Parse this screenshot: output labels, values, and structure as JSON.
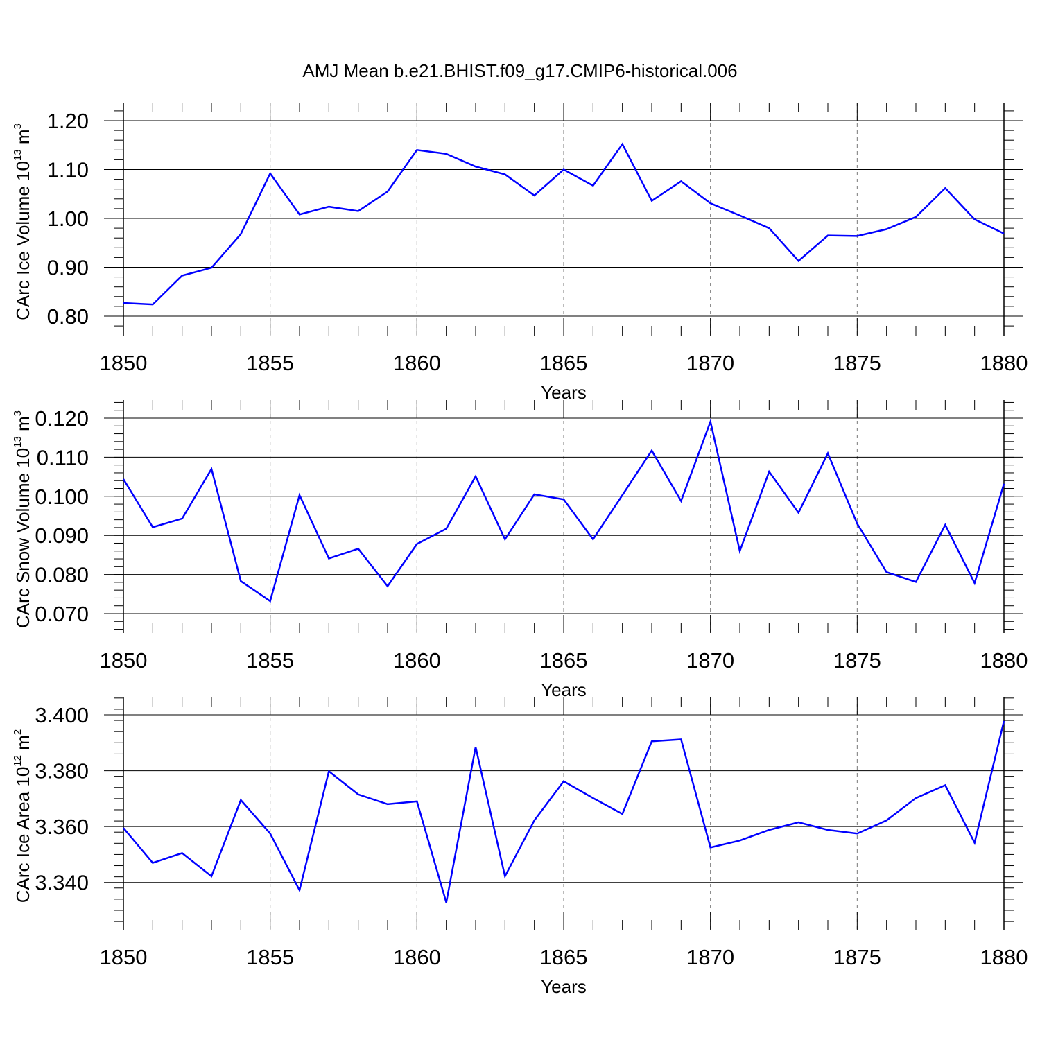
{
  "figure": {
    "title": "AMJ Mean b.e21.BHIST.f09_g17.CMIP6-historical.006",
    "line_color": "#0000ff"
  },
  "chart_data": [
    {
      "type": "line",
      "xlabel": "Years",
      "ylabel": {
        "text": "CArc Ice Volume 10",
        "exp": "13",
        "unit": " m",
        "unit_exp": "3"
      },
      "xlim": [
        1850,
        1880
      ],
      "ylim": [
        0.8,
        1.2
      ],
      "xticks": [
        1850,
        1855,
        1860,
        1865,
        1870,
        1875,
        1880
      ],
      "xtick_labels": [
        "1850",
        "1855",
        "1860",
        "1865",
        "1870",
        "1875",
        "1880"
      ],
      "yticks": [
        0.8,
        0.9,
        1.0,
        1.1,
        1.2
      ],
      "ytick_labels": [
        "0.80",
        "0.90",
        "1.00",
        "1.10",
        "1.20"
      ],
      "grid": "vertical dashed at major x ticks",
      "series": [
        {
          "x": [
            1850,
            1851,
            1852,
            1853,
            1854,
            1855,
            1856,
            1857,
            1858,
            1859,
            1860,
            1861,
            1862,
            1863,
            1864,
            1865,
            1866,
            1867,
            1868,
            1869,
            1870,
            1871,
            1872,
            1873,
            1874,
            1875,
            1876,
            1877,
            1878,
            1879,
            1880
          ],
          "values": [
            0.827,
            0.824,
            0.883,
            0.899,
            0.968,
            1.092,
            1.008,
            1.024,
            1.015,
            1.055,
            1.14,
            1.132,
            1.106,
            1.09,
            1.047,
            1.1,
            1.067,
            1.152,
            1.036,
            1.076,
            1.031,
            1.006,
            0.98,
            0.913,
            0.965,
            0.964,
            0.978,
            1.003,
            1.062,
            0.998,
            0.969
          ]
        }
      ]
    },
    {
      "type": "line",
      "xlabel": "Years",
      "ylabel": {
        "text": "CArc Snow Volume 10",
        "exp": "13",
        "unit": " m",
        "unit_exp": "3"
      },
      "xlim": [
        1850,
        1880
      ],
      "ylim": [
        0.07,
        0.12
      ],
      "xticks": [
        1850,
        1855,
        1860,
        1865,
        1870,
        1875,
        1880
      ],
      "xtick_labels": [
        "1850",
        "1855",
        "1860",
        "1865",
        "1870",
        "1875",
        "1880"
      ],
      "yticks": [
        0.07,
        0.08,
        0.09,
        0.1,
        0.11,
        0.12
      ],
      "ytick_labels": [
        "0.070",
        "0.080",
        "0.090",
        "0.100",
        "0.110",
        "0.120"
      ],
      "grid": "vertical dashed at major x ticks",
      "series": [
        {
          "x": [
            1850,
            1851,
            1852,
            1853,
            1854,
            1855,
            1856,
            1857,
            1858,
            1859,
            1860,
            1861,
            1862,
            1863,
            1864,
            1865,
            1866,
            1867,
            1868,
            1869,
            1870,
            1871,
            1872,
            1873,
            1874,
            1875,
            1876,
            1877,
            1878,
            1879,
            1880
          ],
          "values": [
            0.1044,
            0.0921,
            0.0943,
            0.107,
            0.0783,
            0.0732,
            0.1003,
            0.0841,
            0.0866,
            0.077,
            0.0878,
            0.0917,
            0.1051,
            0.089,
            0.1005,
            0.0992,
            0.089,
            0.1003,
            0.1117,
            0.0988,
            0.1191,
            0.086,
            0.1063,
            0.0958,
            0.111,
            0.093,
            0.0806,
            0.0781,
            0.0927,
            0.0778,
            0.1032
          ]
        }
      ]
    },
    {
      "type": "line",
      "xlabel": "Years",
      "ylabel": {
        "text": "CArc Ice Area 10",
        "exp": "12",
        "unit": " m",
        "unit_exp": "2"
      },
      "xlim": [
        1850,
        1880
      ],
      "ylim": [
        3.33,
        3.4
      ],
      "xticks": [
        1850,
        1855,
        1860,
        1865,
        1870,
        1875,
        1880
      ],
      "xtick_labels": [
        "1850",
        "1855",
        "1860",
        "1865",
        "1870",
        "1875",
        "1880"
      ],
      "yticks": [
        3.34,
        3.36,
        3.38,
        3.4
      ],
      "ytick_labels": [
        "3.340",
        "3.360",
        "3.380",
        "3.400"
      ],
      "grid": "vertical dashed at major x ticks",
      "series": [
        {
          "x": [
            1850,
            1851,
            1852,
            1853,
            1854,
            1855,
            1856,
            1857,
            1858,
            1859,
            1860,
            1861,
            1862,
            1863,
            1864,
            1865,
            1866,
            1867,
            1868,
            1869,
            1870,
            1871,
            1872,
            1873,
            1874,
            1875,
            1876,
            1877,
            1878,
            1879,
            1880
          ],
          "values": [
            3.3595,
            3.347,
            3.3505,
            3.3422,
            3.3695,
            3.3575,
            3.3372,
            3.3798,
            3.3715,
            3.368,
            3.369,
            3.3328,
            3.3885,
            3.3422,
            3.3622,
            3.3762,
            3.3702,
            3.3645,
            3.3905,
            3.3912,
            3.3525,
            3.355,
            3.3588,
            3.3615,
            3.3588,
            3.3575,
            3.3622,
            3.3702,
            3.3748,
            3.3542,
            3.3978
          ]
        }
      ]
    }
  ]
}
